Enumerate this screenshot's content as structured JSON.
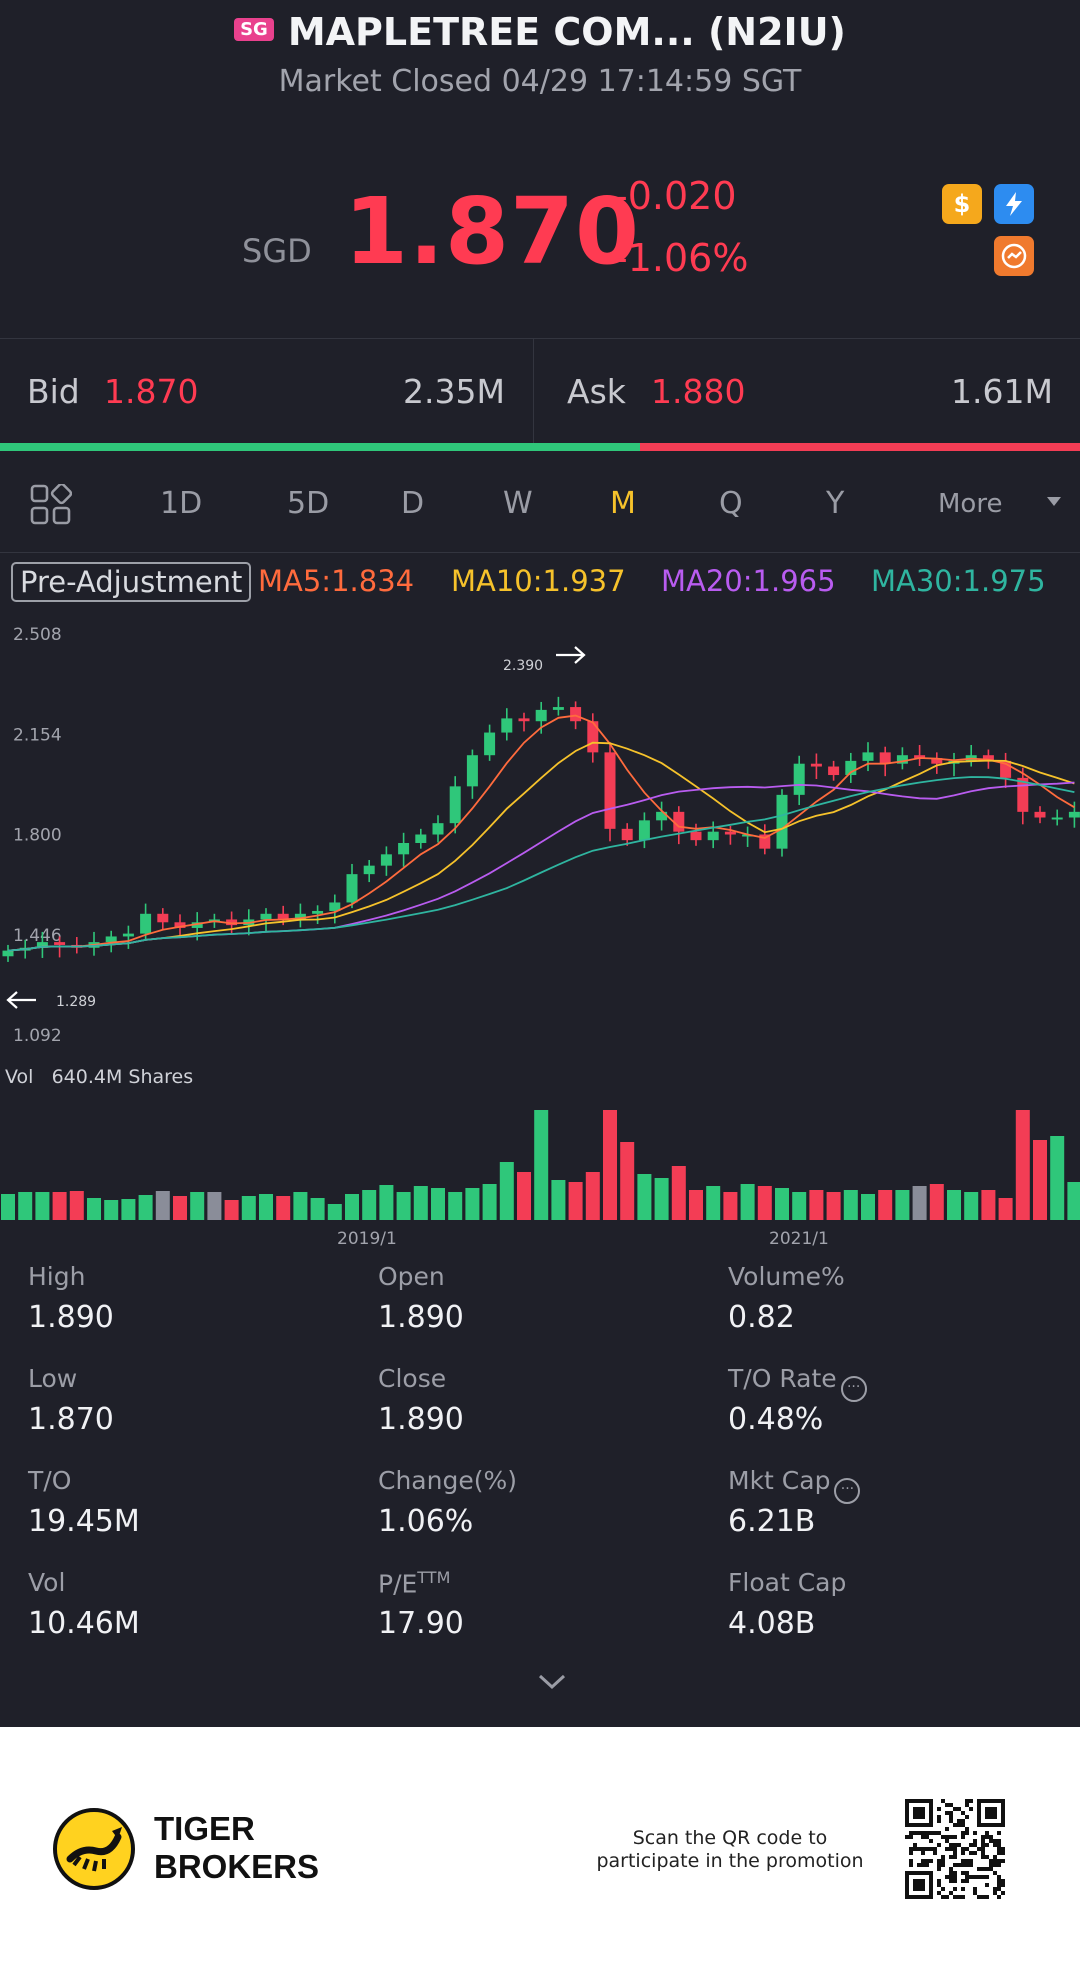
{
  "header": {
    "market_badge": "SG",
    "title": "MAPLETREE COM... (N2IU)",
    "subtitle": "Market Closed 04/29 17:14:59 SGT"
  },
  "quote": {
    "currency": "SGD",
    "price": "1.870",
    "change": "-0.020",
    "change_pct": "-1.06%",
    "color_down": "#ff3b52",
    "badges": [
      "dollar-badge",
      "lightning-badge",
      "ratings-badge"
    ]
  },
  "bid_ask": {
    "bid_label": "Bid",
    "bid_price": "1.870",
    "bid_qty": "2.35M",
    "ask_label": "Ask",
    "ask_price": "1.880",
    "ask_qty": "1.61M",
    "bid_share": 0.593
  },
  "tabs": {
    "items": [
      "1D",
      "5D",
      "D",
      "W",
      "M",
      "Q",
      "Y"
    ],
    "more": "More",
    "active": "M"
  },
  "ma_row": {
    "pre_adjustment": "Pre-Adjustment",
    "ma5": "MA5:1.834",
    "ma10": "MA10:1.937",
    "ma20": "MA20:1.965",
    "ma30": "MA30:1.975",
    "colors": {
      "ma5": "#ff6b3d",
      "ma10": "#f6c22b",
      "ma20": "#b95cf0",
      "ma30": "#2fb5a0"
    }
  },
  "chart_data": {
    "type": "candlestick",
    "price_ticks": [
      "2.508",
      "2.154",
      "1.800",
      "1.446",
      "1.092"
    ],
    "ylim": [
      1.092,
      2.508
    ],
    "high_marker": "2.390",
    "low_marker": "1.289",
    "volume_label": "Vol",
    "volume_value": "640.4M Shares",
    "x_ticks": [
      "2019/1",
      "2021/1"
    ],
    "up_color": "#2fc77a",
    "down_color": "#f33d55",
    "flat_color": "#8a8d99"
  },
  "stats": [
    {
      "label": "High",
      "value": "1.890"
    },
    {
      "label": "Open",
      "value": "1.890"
    },
    {
      "label": "Volume%",
      "value": "0.82"
    },
    {
      "label": "Low",
      "value": "1.870"
    },
    {
      "label": "Close",
      "value": "1.890"
    },
    {
      "label": "T/O Rate",
      "value": "0.48%"
    },
    {
      "label": "T/O",
      "value": "19.45M"
    },
    {
      "label": "Change(%)",
      "value": "1.06%"
    },
    {
      "label": "Mkt Cap",
      "value": "6.21B"
    },
    {
      "label": "Vol",
      "value": "10.46M"
    },
    {
      "label": "P/E",
      "label_sup": "TTM",
      "value": "17.90"
    },
    {
      "label": "Float Cap",
      "value": "4.08B"
    }
  ],
  "footer": {
    "brand_line1": "TIGER",
    "brand_line2": "BROKERS",
    "scan_line1": "Scan the QR code to",
    "scan_line2": "participate in the promotion"
  }
}
